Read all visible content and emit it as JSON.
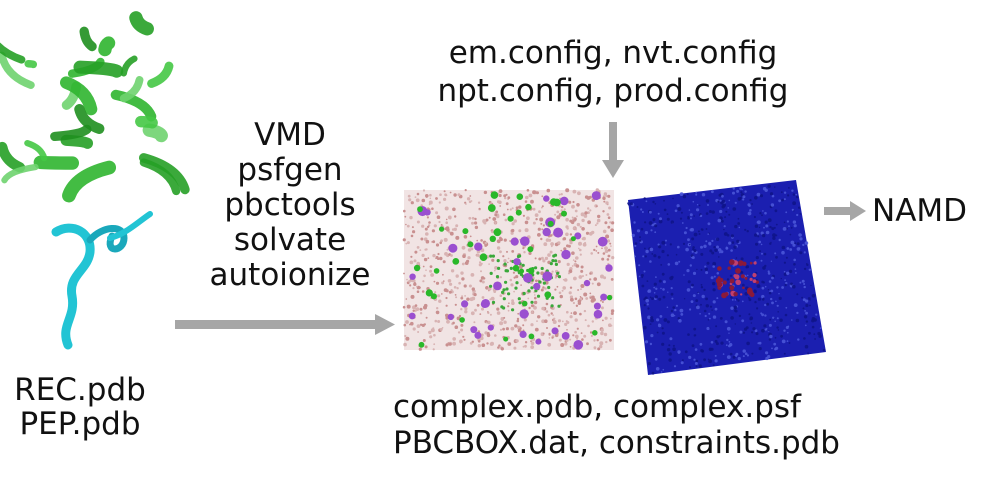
{
  "inputs": {
    "files": [
      "REC.pdb",
      "PEP.pdb"
    ]
  },
  "tools": {
    "items": [
      "VMD",
      "psfgen",
      "pbctools",
      "solvate",
      "autoionize"
    ]
  },
  "configs": {
    "lines": [
      "em.config, nvt.config",
      "npt.config, prod.config"
    ]
  },
  "outputs": {
    "lines": [
      "complex.pdb, complex.psf",
      "PBCBOX.dat, constraints.pdb"
    ]
  },
  "engine": {
    "label": "NAMD"
  },
  "colors": {
    "arrow": "#a6a6a6",
    "protein": "#2fb52f",
    "peptide": "#22c4d4",
    "water_box": "#c9a0a0",
    "ion_purple": "#9a4fd0",
    "ion_green": "#2ab82a",
    "blue_box": "#1b1fb0"
  }
}
